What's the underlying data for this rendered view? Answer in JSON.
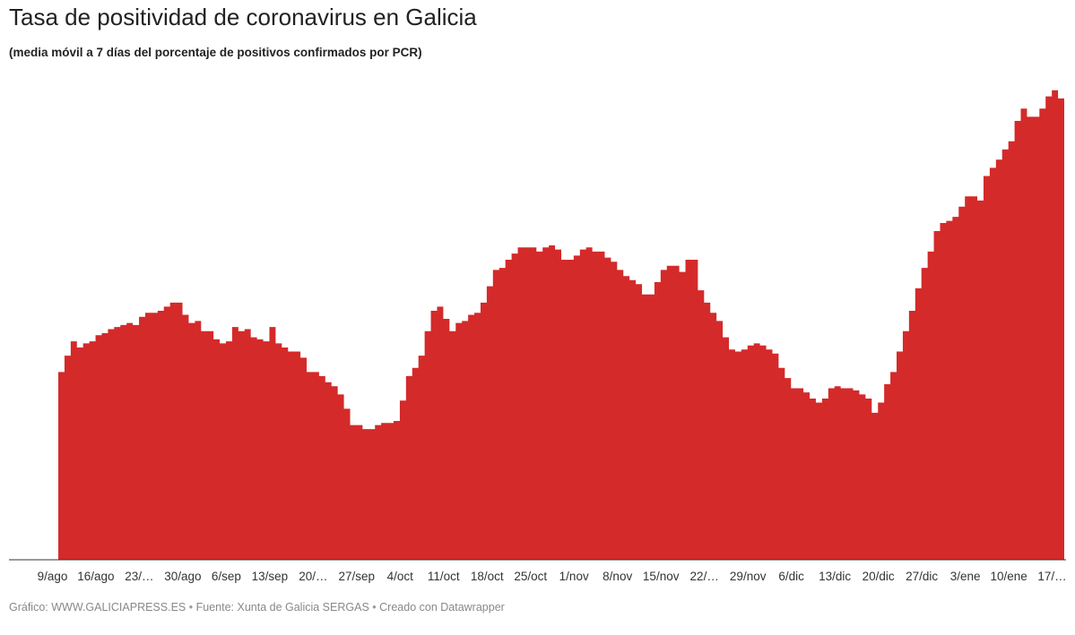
{
  "header": {
    "title": "Tasa de positividad de coronavirus en Galicia",
    "subtitle": "(media móvil a 7 días del porcentaje de positivos confirmados por PCR)"
  },
  "footer": {
    "chart_credit": "Gráfico: WWW.GALICIAPRESS.ES",
    "separator": "•",
    "source": "Fuente: Xunta de Galicia SERGAS",
    "tool": "Creado con Datawrapper"
  },
  "colors": {
    "area": "#d42a2a",
    "axis": "#333333"
  },
  "chart_data": {
    "type": "area",
    "title": "Tasa de positividad de coronavirus en Galicia",
    "subtitle": "(media móvil a 7 días del porcentaje de positivos confirmados por PCR)",
    "xlabel": "",
    "ylabel": "",
    "grid": false,
    "y_axis_labels_shown": false,
    "ylim": [
      0,
      12
    ],
    "x_tick_labels": [
      "9/ago",
      "16/ago",
      "23/…",
      "30/ago",
      "6/sep",
      "13/sep",
      "20/…",
      "27/sep",
      "4/oct",
      "11/oct",
      "18/oct",
      "25/oct",
      "1/nov",
      "8/nov",
      "15/nov",
      "22/…",
      "29/nov",
      "6/dic",
      "13/dic",
      "20/dic",
      "27/dic",
      "3/ene",
      "10/ene",
      "17/…"
    ],
    "values": [
      4.6,
      5.0,
      5.35,
      5.2,
      5.3,
      5.35,
      5.5,
      5.55,
      5.65,
      5.7,
      5.75,
      5.8,
      5.75,
      5.95,
      6.05,
      6.05,
      6.1,
      6.2,
      6.3,
      6.3,
      6.0,
      5.8,
      5.85,
      5.6,
      5.6,
      5.4,
      5.3,
      5.35,
      5.7,
      5.6,
      5.65,
      5.45,
      5.4,
      5.35,
      5.7,
      5.3,
      5.2,
      5.1,
      5.1,
      4.95,
      4.6,
      4.6,
      4.5,
      4.35,
      4.25,
      4.05,
      3.7,
      3.3,
      3.3,
      3.2,
      3.2,
      3.3,
      3.35,
      3.35,
      3.4,
      3.9,
      4.5,
      4.7,
      5.0,
      5.6,
      6.1,
      6.2,
      5.9,
      5.6,
      5.8,
      5.85,
      6.0,
      6.05,
      6.3,
      6.7,
      7.1,
      7.15,
      7.35,
      7.5,
      7.65,
      7.65,
      7.65,
      7.55,
      7.65,
      7.7,
      7.6,
      7.35,
      7.35,
      7.45,
      7.6,
      7.65,
      7.55,
      7.55,
      7.4,
      7.3,
      7.1,
      6.95,
      6.85,
      6.75,
      6.5,
      6.5,
      6.8,
      7.1,
      7.2,
      7.2,
      7.05,
      7.35,
      7.35,
      6.6,
      6.3,
      6.05,
      5.85,
      5.45,
      5.15,
      5.1,
      5.15,
      5.25,
      5.3,
      5.25,
      5.15,
      5.05,
      4.7,
      4.45,
      4.2,
      4.2,
      4.1,
      3.95,
      3.85,
      3.95,
      4.2,
      4.25,
      4.2,
      4.2,
      4.15,
      4.05,
      3.95,
      3.6,
      3.85,
      4.3,
      4.6,
      5.1,
      5.6,
      6.1,
      6.65,
      7.15,
      7.55,
      8.05,
      8.25,
      8.3,
      8.4,
      8.65,
      8.9,
      8.9,
      8.8,
      9.4,
      9.6,
      9.8,
      10.05,
      10.25,
      10.75,
      11.05,
      10.85,
      10.85,
      11.05,
      11.35,
      11.5,
      11.3
    ]
  }
}
